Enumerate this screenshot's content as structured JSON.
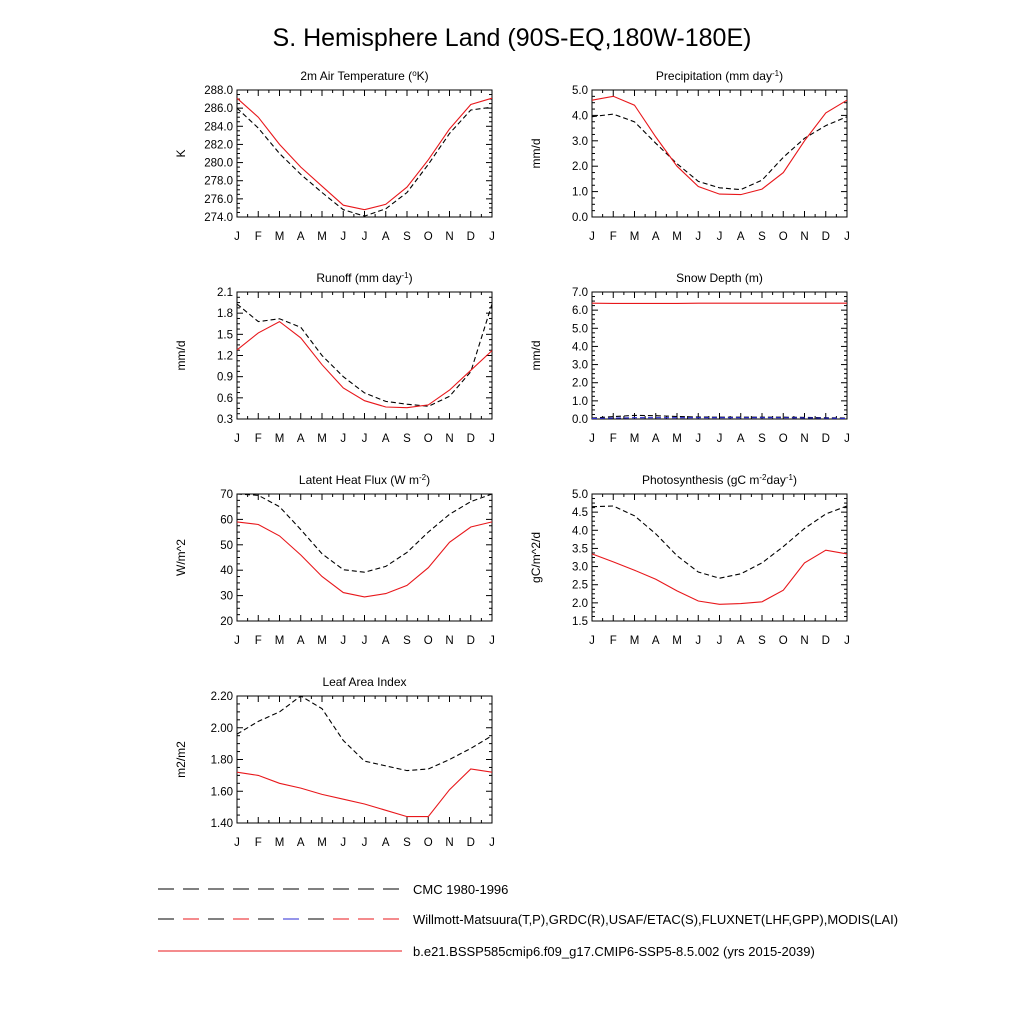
{
  "main_title": "S. Hemisphere Land (90S-EQ,180W-180E)",
  "colors": {
    "model": "#e8171b",
    "obs": "#000000",
    "obs_blue": "#2b2bd6"
  },
  "months": [
    "J",
    "F",
    "M",
    "A",
    "M",
    "J",
    "J",
    "A",
    "S",
    "O",
    "N",
    "D",
    "J"
  ],
  "chart_data": [
    {
      "id": "temp",
      "type": "line",
      "title": "2m Air Temperature (",
      "title_sup": "o",
      "title_after": "K)",
      "ylabel": "K",
      "ylim": [
        274.0,
        288.0
      ],
      "yticks": [
        "274.0",
        "276.0",
        "278.0",
        "280.0",
        "282.0",
        "284.0",
        "286.0",
        "288.0"
      ],
      "x": [
        "J",
        "F",
        "M",
        "A",
        "M",
        "J",
        "J",
        "A",
        "S",
        "O",
        "N",
        "D",
        "J"
      ],
      "series": [
        {
          "name": "CMC 1980-1996",
          "style": "dash",
          "values": [
            286.0,
            283.8,
            281.0,
            278.7,
            276.7,
            274.8,
            274.1,
            274.9,
            276.7,
            279.8,
            283.2,
            285.8,
            286.1
          ]
        },
        {
          "name": "b.e21.BSSP585cmip6.f09_g17.CMIP6-SSP5-8.5.002 (yrs 2015-2039)",
          "style": "solid",
          "values": [
            287.1,
            285.0,
            282.0,
            279.5,
            277.4,
            275.3,
            274.8,
            275.4,
            277.3,
            280.3,
            283.7,
            286.4,
            287.1
          ]
        }
      ]
    },
    {
      "id": "precip",
      "type": "line",
      "title": "Precipitation (mm day",
      "title_sup": "-1",
      "title_after": ")",
      "ylabel": "mm/d",
      "ylim": [
        0.0,
        5.0
      ],
      "yticks": [
        "0.0",
        "1.0",
        "2.0",
        "3.0",
        "4.0",
        "5.0"
      ],
      "x": [
        "J",
        "F",
        "M",
        "A",
        "M",
        "J",
        "J",
        "A",
        "S",
        "O",
        "N",
        "D",
        "J"
      ],
      "series": [
        {
          "name": "Willmott-Matsuura(T,P),GRDC(R),USAF/ETAC(S),FLUXNET(LHF,GPP),MODIS(LAI)",
          "style": "dash",
          "values": [
            3.95,
            4.05,
            3.75,
            2.9,
            2.1,
            1.4,
            1.15,
            1.08,
            1.45,
            2.35,
            3.1,
            3.6,
            3.95
          ]
        },
        {
          "name": "b.e21.BSSP585cmip6.f09_g17.CMIP6-SSP5-8.5.002 (yrs 2015-2039)",
          "style": "solid",
          "values": [
            4.6,
            4.75,
            4.4,
            3.15,
            2.0,
            1.2,
            0.9,
            0.88,
            1.1,
            1.75,
            3.0,
            4.1,
            4.6
          ]
        }
      ]
    },
    {
      "id": "runoff",
      "type": "line",
      "title": "Runoff (mm day",
      "title_sup": "-1",
      "title_after": ")",
      "ylabel": "mm/d",
      "ylim": [
        0.3,
        2.1
      ],
      "yticks": [
        "0.3",
        "0.6",
        "0.9",
        "1.2",
        "1.5",
        "1.8",
        "2.1"
      ],
      "x": [
        "J",
        "F",
        "M",
        "A",
        "M",
        "J",
        "J",
        "A",
        "S",
        "O",
        "N",
        "D",
        "J"
      ],
      "series": [
        {
          "name": "Willmott-Matsuura(T,P),GRDC(R),USAF/ETAC(S),FLUXNET(LHF,GPP),MODIS(LAI)",
          "style": "dash",
          "values": [
            1.93,
            1.68,
            1.72,
            1.6,
            1.2,
            0.9,
            0.67,
            0.55,
            0.51,
            0.48,
            0.62,
            0.97,
            1.93
          ]
        },
        {
          "name": "b.e21.BSSP585cmip6.f09_g17.CMIP6-SSP5-8.5.002 (yrs 2015-2039)",
          "style": "solid",
          "values": [
            1.28,
            1.52,
            1.68,
            1.45,
            1.07,
            0.74,
            0.56,
            0.47,
            0.46,
            0.5,
            0.71,
            0.99,
            1.27
          ]
        }
      ]
    },
    {
      "id": "snow",
      "type": "line",
      "title": "Snow Depth (m)",
      "title_sup": "",
      "title_after": "",
      "ylabel": "mm/d",
      "ylim": [
        0.0,
        7.0
      ],
      "yticks": [
        "0.0",
        "1.0",
        "2.0",
        "3.0",
        "4.0",
        "5.0",
        "6.0",
        "7.0"
      ],
      "x": [
        "J",
        "F",
        "M",
        "A",
        "M",
        "J",
        "J",
        "A",
        "S",
        "O",
        "N",
        "D",
        "J"
      ],
      "series": [
        {
          "name": "CMC 1980-1996",
          "style": "dash",
          "values": [
            0.05,
            0.13,
            0.2,
            0.18,
            0.14,
            0.11,
            0.1,
            0.1,
            0.1,
            0.1,
            0.09,
            0.07,
            0.05
          ]
        },
        {
          "name": "Willmott-Matsuura(T,P),GRDC(R),USAF/ETAC(S),FLUXNET(LHF,GPP),MODIS(LAI)",
          "style": "dash-blue",
          "values": [
            0.03,
            0.05,
            0.07,
            0.07,
            0.07,
            0.07,
            0.07,
            0.07,
            0.07,
            0.07,
            0.06,
            0.05,
            0.03
          ]
        },
        {
          "name": "b.e21.BSSP585cmip6.f09_g17.CMIP6-SSP5-8.5.002 (yrs 2015-2039)",
          "style": "solid",
          "values": [
            6.38,
            6.37,
            6.37,
            6.37,
            6.37,
            6.38,
            6.38,
            6.38,
            6.38,
            6.38,
            6.38,
            6.38,
            6.38
          ]
        }
      ]
    },
    {
      "id": "lhf",
      "type": "line",
      "title": "Latent Heat Flux (W m",
      "title_sup": "-2",
      "title_after": ")",
      "ylabel": "W/m^2",
      "ylim": [
        20,
        70
      ],
      "yticks": [
        "20",
        "30",
        "40",
        "50",
        "60",
        "70"
      ],
      "x": [
        "J",
        "F",
        "M",
        "A",
        "M",
        "J",
        "J",
        "A",
        "S",
        "O",
        "N",
        "D",
        "J"
      ],
      "series": [
        {
          "name": "Willmott-Matsuura(T,P),GRDC(R),USAF/ETAC(S),FLUXNET(LHF,GPP),MODIS(LAI)",
          "style": "dash",
          "values": [
            70,
            69.5,
            65,
            56,
            46.5,
            40.2,
            39.2,
            41.5,
            47,
            55,
            62,
            67,
            70
          ]
        },
        {
          "name": "b.e21.BSSP585cmip6.f09_g17.CMIP6-SSP5-8.5.002 (yrs 2015-2039)",
          "style": "solid",
          "values": [
            59,
            58,
            53.5,
            46,
            37.5,
            31.2,
            29.5,
            30.8,
            34,
            41,
            51,
            57,
            59
          ]
        }
      ]
    },
    {
      "id": "gpp",
      "type": "line",
      "title": "Photosynthesis (gC m",
      "title_sup": "-2",
      "title_after": "day",
      "title_sup2": "-1",
      "title_after2": ")",
      "ylabel": "gC/m^2/d",
      "ylim": [
        1.5,
        5.0
      ],
      "yticks": [
        "1.5",
        "2.0",
        "2.5",
        "3.0",
        "3.5",
        "4.0",
        "4.5",
        "5.0"
      ],
      "x": [
        "J",
        "F",
        "M",
        "A",
        "M",
        "J",
        "J",
        "A",
        "S",
        "O",
        "N",
        "D",
        "J"
      ],
      "series": [
        {
          "name": "Willmott-Matsuura(T,P),GRDC(R),USAF/ETAC(S),FLUXNET(LHF,GPP),MODIS(LAI)",
          "style": "dash",
          "values": [
            4.65,
            4.67,
            4.4,
            3.9,
            3.3,
            2.85,
            2.68,
            2.8,
            3.1,
            3.55,
            4.05,
            4.45,
            4.67
          ]
        },
        {
          "name": "b.e21.BSSP585cmip6.f09_g17.CMIP6-SSP5-8.5.002 (yrs 2015-2039)",
          "style": "solid",
          "values": [
            3.35,
            3.13,
            2.9,
            2.65,
            2.33,
            2.05,
            1.96,
            1.98,
            2.03,
            2.35,
            3.1,
            3.45,
            3.35
          ]
        }
      ]
    },
    {
      "id": "lai",
      "type": "line",
      "title": "Leaf Area Index",
      "title_sup": "",
      "title_after": "",
      "ylabel": "m2/m2",
      "ylim": [
        1.4,
        2.2
      ],
      "yticks": [
        "1.40",
        "1.60",
        "1.80",
        "2.00",
        "2.20"
      ],
      "x": [
        "J",
        "F",
        "M",
        "A",
        "M",
        "J",
        "J",
        "A",
        "S",
        "O",
        "N",
        "D",
        "J"
      ],
      "series": [
        {
          "name": "Willmott-Matsuura(T,P),GRDC(R),USAF/ETAC(S),FLUXNET(LHF,GPP),MODIS(LAI)",
          "style": "dash",
          "values": [
            1.96,
            2.04,
            2.1,
            2.2,
            2.12,
            1.92,
            1.79,
            1.76,
            1.73,
            1.74,
            1.8,
            1.87,
            1.95
          ]
        },
        {
          "name": "b.e21.BSSP585cmip6.f09_g17.CMIP6-SSP5-8.5.002 (yrs 2015-2039)",
          "style": "solid",
          "values": [
            1.72,
            1.7,
            1.65,
            1.62,
            1.58,
            1.55,
            1.52,
            1.48,
            1.44,
            1.44,
            1.61,
            1.74,
            1.72
          ]
        }
      ]
    }
  ],
  "legend": [
    {
      "style": "dash",
      "label": "CMC 1980-1996"
    },
    {
      "style": "dash-mixed",
      "label": "Willmott-Matsuura(T,P),GRDC(R),USAF/ETAC(S),FLUXNET(LHF,GPP),MODIS(LAI)"
    },
    {
      "style": "solid",
      "label": "b.e21.BSSP585cmip6.f09_g17.CMIP6-SSP5-8.5.002 (yrs 2015-2039)"
    }
  ]
}
